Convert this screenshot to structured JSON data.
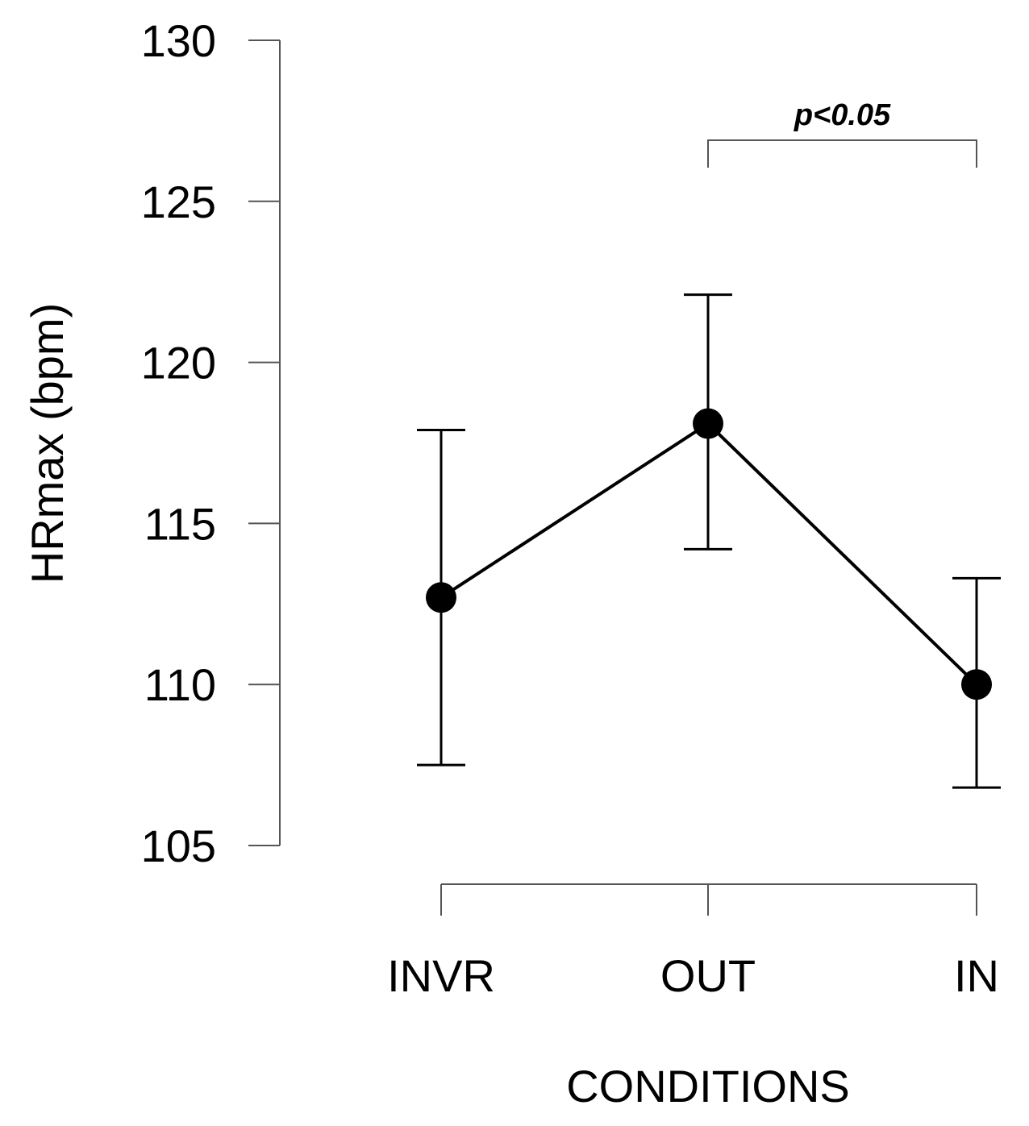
{
  "chart_data": {
    "type": "line",
    "title": "",
    "xlabel": "CONDITIONS",
    "ylabel": "HRmax (bpm)",
    "ylim": [
      105,
      130
    ],
    "yticks": [
      105,
      110,
      115,
      120,
      125,
      130
    ],
    "categories": [
      "INVR",
      "OUT",
      "IN"
    ],
    "series": [
      {
        "values": [
          112.7,
          118.1,
          110.0
        ],
        "error_upper": [
          117.9,
          122.1,
          113.3
        ],
        "error_lower": [
          107.5,
          114.2,
          106.8
        ]
      }
    ],
    "annotations": [
      {
        "text": "p<0.05",
        "from": "OUT",
        "to": "IN"
      }
    ],
    "grid": false,
    "legend": "none",
    "colors": {
      "line": "#000000",
      "axis": "#555555"
    }
  }
}
